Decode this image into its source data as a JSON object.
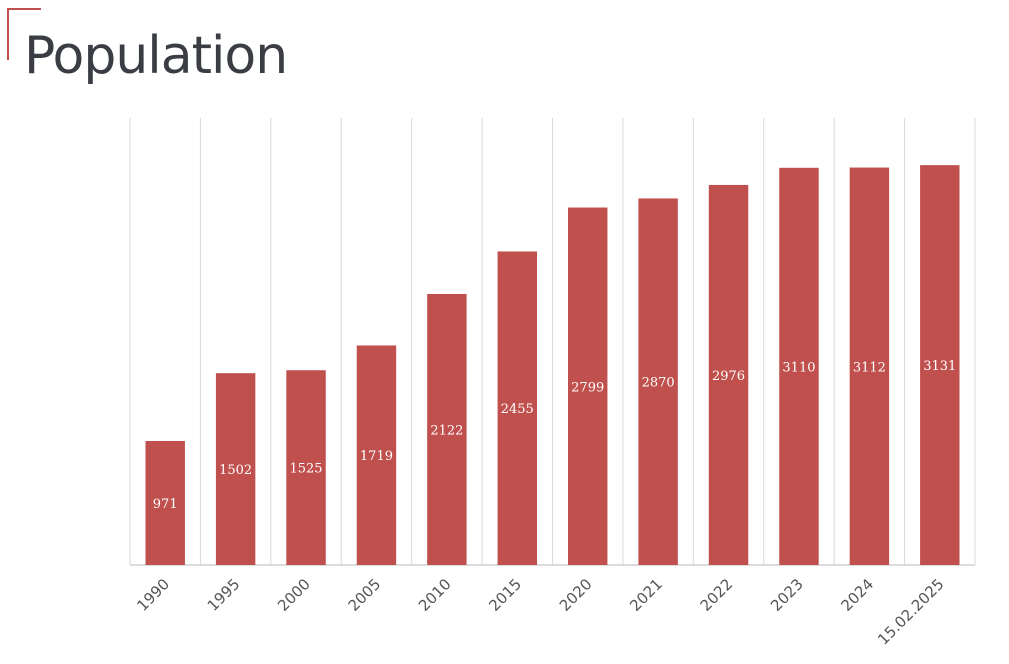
{
  "page": {
    "title": "Population"
  },
  "colors": {
    "bar": "#c0504d",
    "grid": "#d9d9d9",
    "axis": "#c8c8c8",
    "title": "#3a3d44",
    "corner_accent": "#c0504d"
  },
  "chart_data": {
    "type": "bar",
    "title": "Population",
    "xlabel": "",
    "ylabel": "",
    "categories": [
      "1990",
      "1995",
      "2000",
      "2005",
      "2010",
      "2015",
      "2020",
      "2021",
      "2022",
      "2023",
      "2024",
      "15.02.2025"
    ],
    "values": [
      971,
      1502,
      1525,
      1719,
      2122,
      2455,
      2799,
      2870,
      2976,
      3110,
      3112,
      3131
    ],
    "data_labels": [
      "971",
      "1502",
      "1525",
      "1719",
      "2122",
      "2455",
      "2799",
      "2870",
      "2976",
      "3110",
      "3112",
      "3131"
    ],
    "ylim": [
      0,
      3500
    ],
    "grid": "vertical",
    "legend": "none",
    "y_axis_visible": false
  }
}
